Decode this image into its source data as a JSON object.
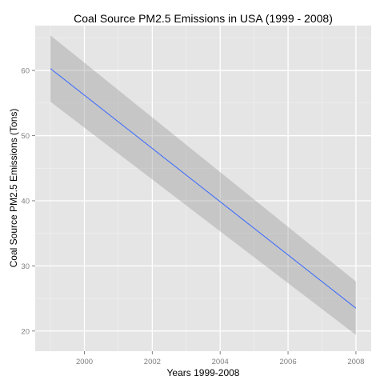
{
  "chart_data": {
    "type": "line",
    "title": "Coal Source PM2.5 Emissions in USA (1999 - 2008)",
    "xlabel": "Years 1999-2008",
    "ylabel": "Coal Source PM2.5 Emissions (Tons)",
    "xlim": [
      1998.55,
      2008.45
    ],
    "ylim": [
      16.9,
      66.9
    ],
    "x_ticks": [
      2000,
      2002,
      2004,
      2006,
      2008
    ],
    "y_ticks": [
      20,
      30,
      40,
      50,
      60
    ],
    "grid": true,
    "legend": "none",
    "series": [
      {
        "type": "smooth",
        "x": [
          1999,
          2008
        ],
        "y": [
          60.3,
          23.5
        ],
        "ci_lower": [
          55.2,
          19.4
        ],
        "ci_upper": [
          65.4,
          27.6
        ]
      }
    ],
    "colors": {
      "line": "#3366ff",
      "ribbon": "#999999",
      "panel": "#e5e5e5",
      "grid": "#ffffff"
    }
  }
}
